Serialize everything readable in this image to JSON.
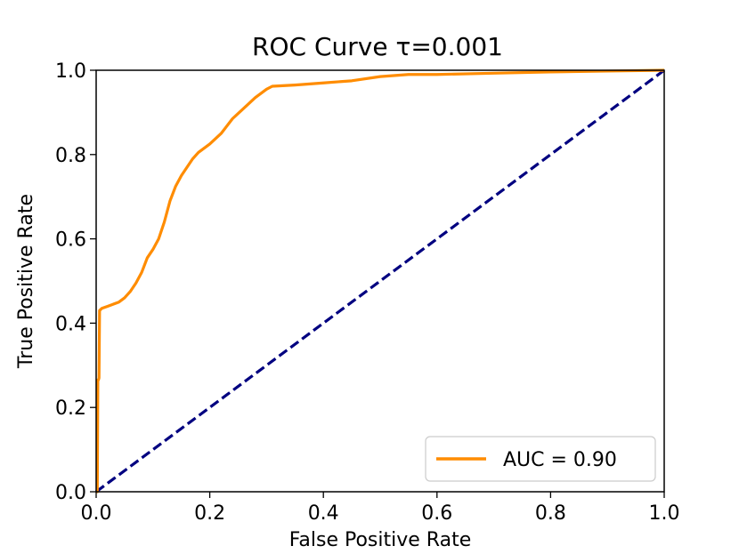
{
  "chart_data": {
    "type": "line",
    "title": "ROC Curve τ=0.001",
    "xlabel": "False Positive Rate",
    "ylabel": "True Positive Rate",
    "xlim": [
      0.0,
      1.0
    ],
    "ylim": [
      0.0,
      1.0
    ],
    "xticks": [
      "0.0",
      "0.2",
      "0.4",
      "0.6",
      "0.8",
      "1.0"
    ],
    "yticks": [
      "0.0",
      "0.2",
      "0.4",
      "0.6",
      "0.8",
      "1.0"
    ],
    "grid": false,
    "legend_position": "lower-right",
    "series": [
      {
        "name": "AUC = 0.90",
        "color": "#ff8c00",
        "style": "solid",
        "x": [
          0.0,
          0.002,
          0.003,
          0.004,
          0.005,
          0.006,
          0.01,
          0.02,
          0.03,
          0.04,
          0.05,
          0.06,
          0.07,
          0.08,
          0.09,
          0.1,
          0.11,
          0.12,
          0.13,
          0.14,
          0.15,
          0.16,
          0.17,
          0.18,
          0.2,
          0.22,
          0.24,
          0.26,
          0.28,
          0.3,
          0.31,
          0.35,
          0.4,
          0.45,
          0.5,
          0.55,
          0.6,
          0.7,
          0.8,
          0.9,
          1.0
        ],
        "y": [
          0.0,
          0.0,
          0.265,
          0.265,
          0.27,
          0.43,
          0.435,
          0.44,
          0.445,
          0.45,
          0.46,
          0.475,
          0.495,
          0.52,
          0.555,
          0.575,
          0.6,
          0.64,
          0.69,
          0.725,
          0.75,
          0.77,
          0.79,
          0.805,
          0.825,
          0.85,
          0.885,
          0.91,
          0.935,
          0.955,
          0.962,
          0.965,
          0.97,
          0.975,
          0.985,
          0.99,
          0.99,
          0.993,
          0.996,
          0.998,
          1.0
        ]
      },
      {
        "name": "",
        "color": "#000080",
        "style": "dashed",
        "x": [
          0.0,
          1.0
        ],
        "y": [
          0.0,
          1.0
        ]
      }
    ]
  }
}
